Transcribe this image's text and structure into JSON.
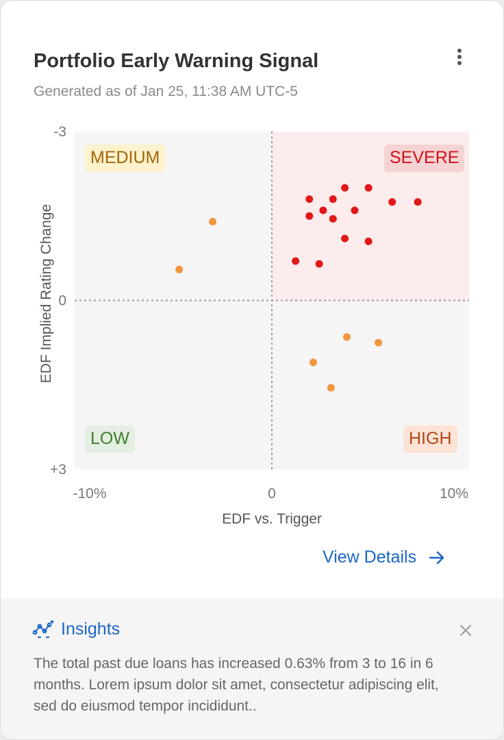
{
  "card": {
    "title": "Portfolio Early Warning Signal",
    "subtitle": "Generated as of Jan 25, 11:38 AM UTC-5",
    "menu_icon": "more-vertical-icon"
  },
  "chart_data": {
    "type": "scatter",
    "xlabel": "EDF vs. Trigger",
    "ylabel": "EDF Implied Rating Change",
    "xlim": [
      -10,
      10
    ],
    "ylim": [
      -3,
      3
    ],
    "y_reversed": true,
    "x_tick_labels": [
      "-10%",
      "0",
      "10%"
    ],
    "y_tick_labels": [
      "-3",
      "0",
      "+3"
    ],
    "quadrants": {
      "top_left": {
        "label": "MEDIUM",
        "bg": "#f5f5f5",
        "label_bg": "#fdf2cc",
        "color": "#a3650a"
      },
      "top_right": {
        "label": "SEVERE",
        "bg": "#fdecec",
        "label_bg": "#f6d3d3",
        "color": "#d0101a"
      },
      "bottom_left": {
        "label": "LOW",
        "bg": "#f5f5f5",
        "label_bg": "#e5eee2",
        "color": "#3d7d2b"
      },
      "bottom_right": {
        "label": "HIGH",
        "bg": "#f5f5f5",
        "label_bg": "#fde3d5",
        "color": "#b1471c"
      }
    },
    "series": [
      {
        "color": "#e21818",
        "points": [
          [
            3.7,
            -2.0
          ],
          [
            4.9,
            -2.0
          ],
          [
            1.9,
            -1.8
          ],
          [
            3.1,
            -1.8
          ],
          [
            6.1,
            -1.75
          ],
          [
            7.4,
            -1.75
          ],
          [
            2.6,
            -1.6
          ],
          [
            4.2,
            -1.6
          ],
          [
            1.9,
            -1.5
          ],
          [
            3.1,
            -1.45
          ],
          [
            3.7,
            -1.1
          ],
          [
            4.9,
            -1.05
          ],
          [
            1.2,
            -0.7
          ],
          [
            2.4,
            -0.65
          ]
        ]
      },
      {
        "color": "#f0963c",
        "points": [
          [
            -3.0,
            -1.4
          ],
          [
            -4.7,
            -0.55
          ],
          [
            3.8,
            0.65
          ],
          [
            5.4,
            0.75
          ],
          [
            2.1,
            1.1
          ],
          [
            3.0,
            1.55
          ]
        ]
      }
    ]
  },
  "view_details": {
    "label": "View Details",
    "icon": "arrow-right-icon"
  },
  "insights": {
    "title": "Insights",
    "icon": "insights-network-icon",
    "close_icon": "close-icon",
    "body": "The total past due loans has increased 0.63% from 3 to 16 in 6 months. Lorem ipsum dolor sit amet, consectetur adipiscing elit, sed do eiusmod tempor incididunt.."
  }
}
